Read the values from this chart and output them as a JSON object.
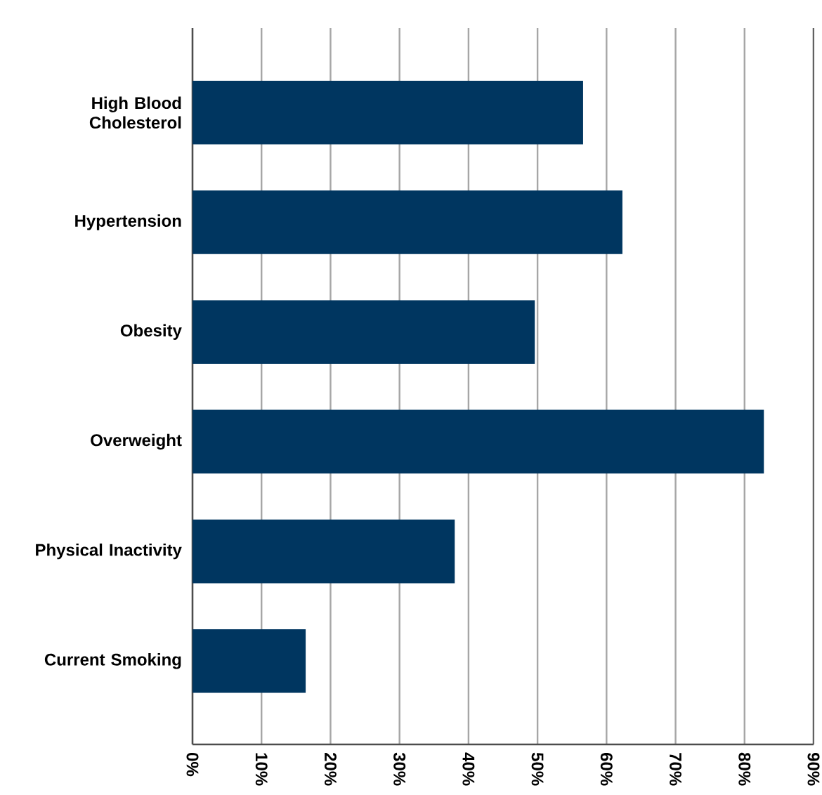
{
  "chart_data": {
    "type": "bar",
    "orientation": "horizontal",
    "categories": [
      "High Blood Cholesterol",
      "Hypertension",
      "Obesity",
      "Overweight",
      "Physical Inactivity",
      "Current Smoking"
    ],
    "values": [
      56.6,
      62.3,
      49.6,
      82.8,
      38.0,
      16.4
    ],
    "color": "#003660",
    "xlim": [
      0,
      90
    ],
    "xticks": [
      {
        "value": 0,
        "label": "0%"
      },
      {
        "value": 10,
        "label": "10%"
      },
      {
        "value": 20,
        "label": "20%"
      },
      {
        "value": 30,
        "label": "30%"
      },
      {
        "value": 40,
        "label": "40%"
      },
      {
        "value": 50,
        "label": "50%"
      },
      {
        "value": 60,
        "label": "60%"
      },
      {
        "value": 70,
        "label": "70%"
      },
      {
        "value": 80,
        "label": "80%"
      },
      {
        "value": 90,
        "label": "90%"
      }
    ],
    "grid": "x"
  }
}
